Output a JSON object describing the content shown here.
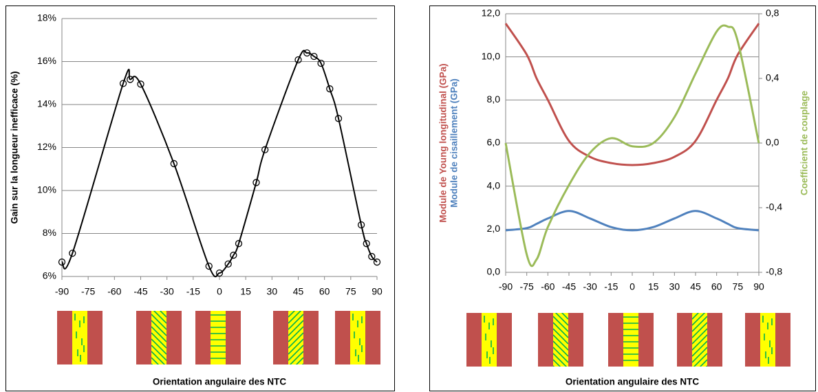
{
  "chart_data": [
    {
      "type": "line",
      "markers": "circle",
      "grid": true,
      "xlabel": "Orientation angulaire des NTC",
      "ylabel": "Gain sur la longueur inefficace (%)",
      "x": [
        -90,
        -84,
        -55,
        -51,
        -45,
        -26,
        -6,
        0,
        5,
        8,
        11,
        21,
        26,
        45,
        50,
        54,
        58,
        63,
        68,
        81,
        84,
        87,
        90
      ],
      "series": [
        {
          "color": "#000000",
          "values": [
            6.67,
            7.08,
            14.98,
            15.17,
            14.95,
            11.25,
            6.48,
            6.16,
            6.58,
            6.99,
            7.53,
            10.37,
            11.9,
            16.08,
            16.4,
            16.24,
            15.92,
            14.73,
            13.35,
            8.4,
            7.53,
            6.93,
            6.67
          ]
        }
      ],
      "xlim": [
        -90,
        90
      ],
      "xticks": [
        -90,
        -75,
        -60,
        -45,
        -30,
        -15,
        0,
        15,
        30,
        45,
        60,
        75,
        90
      ],
      "ylim": [
        6,
        18
      ],
      "yticks": [
        {
          "value": 6,
          "label": "6%"
        },
        {
          "value": 8,
          "label": "8%"
        },
        {
          "value": 10,
          "label": "10%"
        },
        {
          "value": 12,
          "label": "12%"
        },
        {
          "value": 14,
          "label": "14%"
        },
        {
          "value": 16,
          "label": "16%"
        },
        {
          "value": 18,
          "label": "18%"
        }
      ]
    },
    {
      "type": "line",
      "grid": true,
      "xlabel": "Orientation angulaire des NTC",
      "x": [
        -90,
        -75,
        -68,
        -60,
        -45,
        -30,
        -15,
        0,
        15,
        30,
        45,
        60,
        68,
        75,
        90
      ],
      "series": [
        {
          "name": "Module de Young longitudinal (GPa)",
          "color": "#c0504d",
          "values": [
            11.55,
            10.1,
            9.0,
            8.0,
            6.1,
            5.36,
            5.07,
            4.98,
            5.07,
            5.36,
            6.1,
            8.0,
            9.0,
            10.1,
            11.55
          ]
        },
        {
          "name": "Module de cisaillement (GPa)",
          "color": "#4f81bd",
          "values": [
            1.95,
            2.05,
            2.25,
            2.5,
            2.85,
            2.5,
            2.1,
            1.95,
            2.1,
            2.5,
            2.85,
            2.5,
            2.25,
            2.05,
            1.95
          ]
        },
        {
          "name": "Coefficient de couplage",
          "color": "#9bbb59",
          "axis": "y2",
          "values": [
            0.0,
            -0.69,
            -0.72,
            -0.52,
            -0.26,
            -0.06,
            0.03,
            -0.02,
            0.0,
            0.16,
            0.43,
            0.69,
            0.72,
            0.63,
            0.0
          ]
        }
      ],
      "xlim": [
        -90,
        90
      ],
      "xticks": [
        -90,
        -75,
        -60,
        -45,
        -30,
        -15,
        0,
        15,
        30,
        45,
        60,
        75,
        90
      ],
      "ylim": [
        0,
        12
      ],
      "yticks": [
        {
          "value": 0,
          "label": "0,0"
        },
        {
          "value": 2,
          "label": "2,0"
        },
        {
          "value": 4,
          "label": "4,0"
        },
        {
          "value": 6,
          "label": "6,0"
        },
        {
          "value": 8,
          "label": "8,0"
        },
        {
          "value": 10,
          "label": "10,0"
        },
        {
          "value": 12,
          "label": "12,0"
        }
      ],
      "y2lim": [
        -0.8,
        0.8
      ],
      "y2ticks": [
        {
          "value": -0.8,
          "label": "-0,8"
        },
        {
          "value": -0.4,
          "label": "-0,4"
        },
        {
          "value": 0,
          "label": "0,0"
        },
        {
          "value": 0.4,
          "label": "0,4"
        },
        {
          "value": 0.8,
          "label": "0,8"
        }
      ]
    }
  ]
}
